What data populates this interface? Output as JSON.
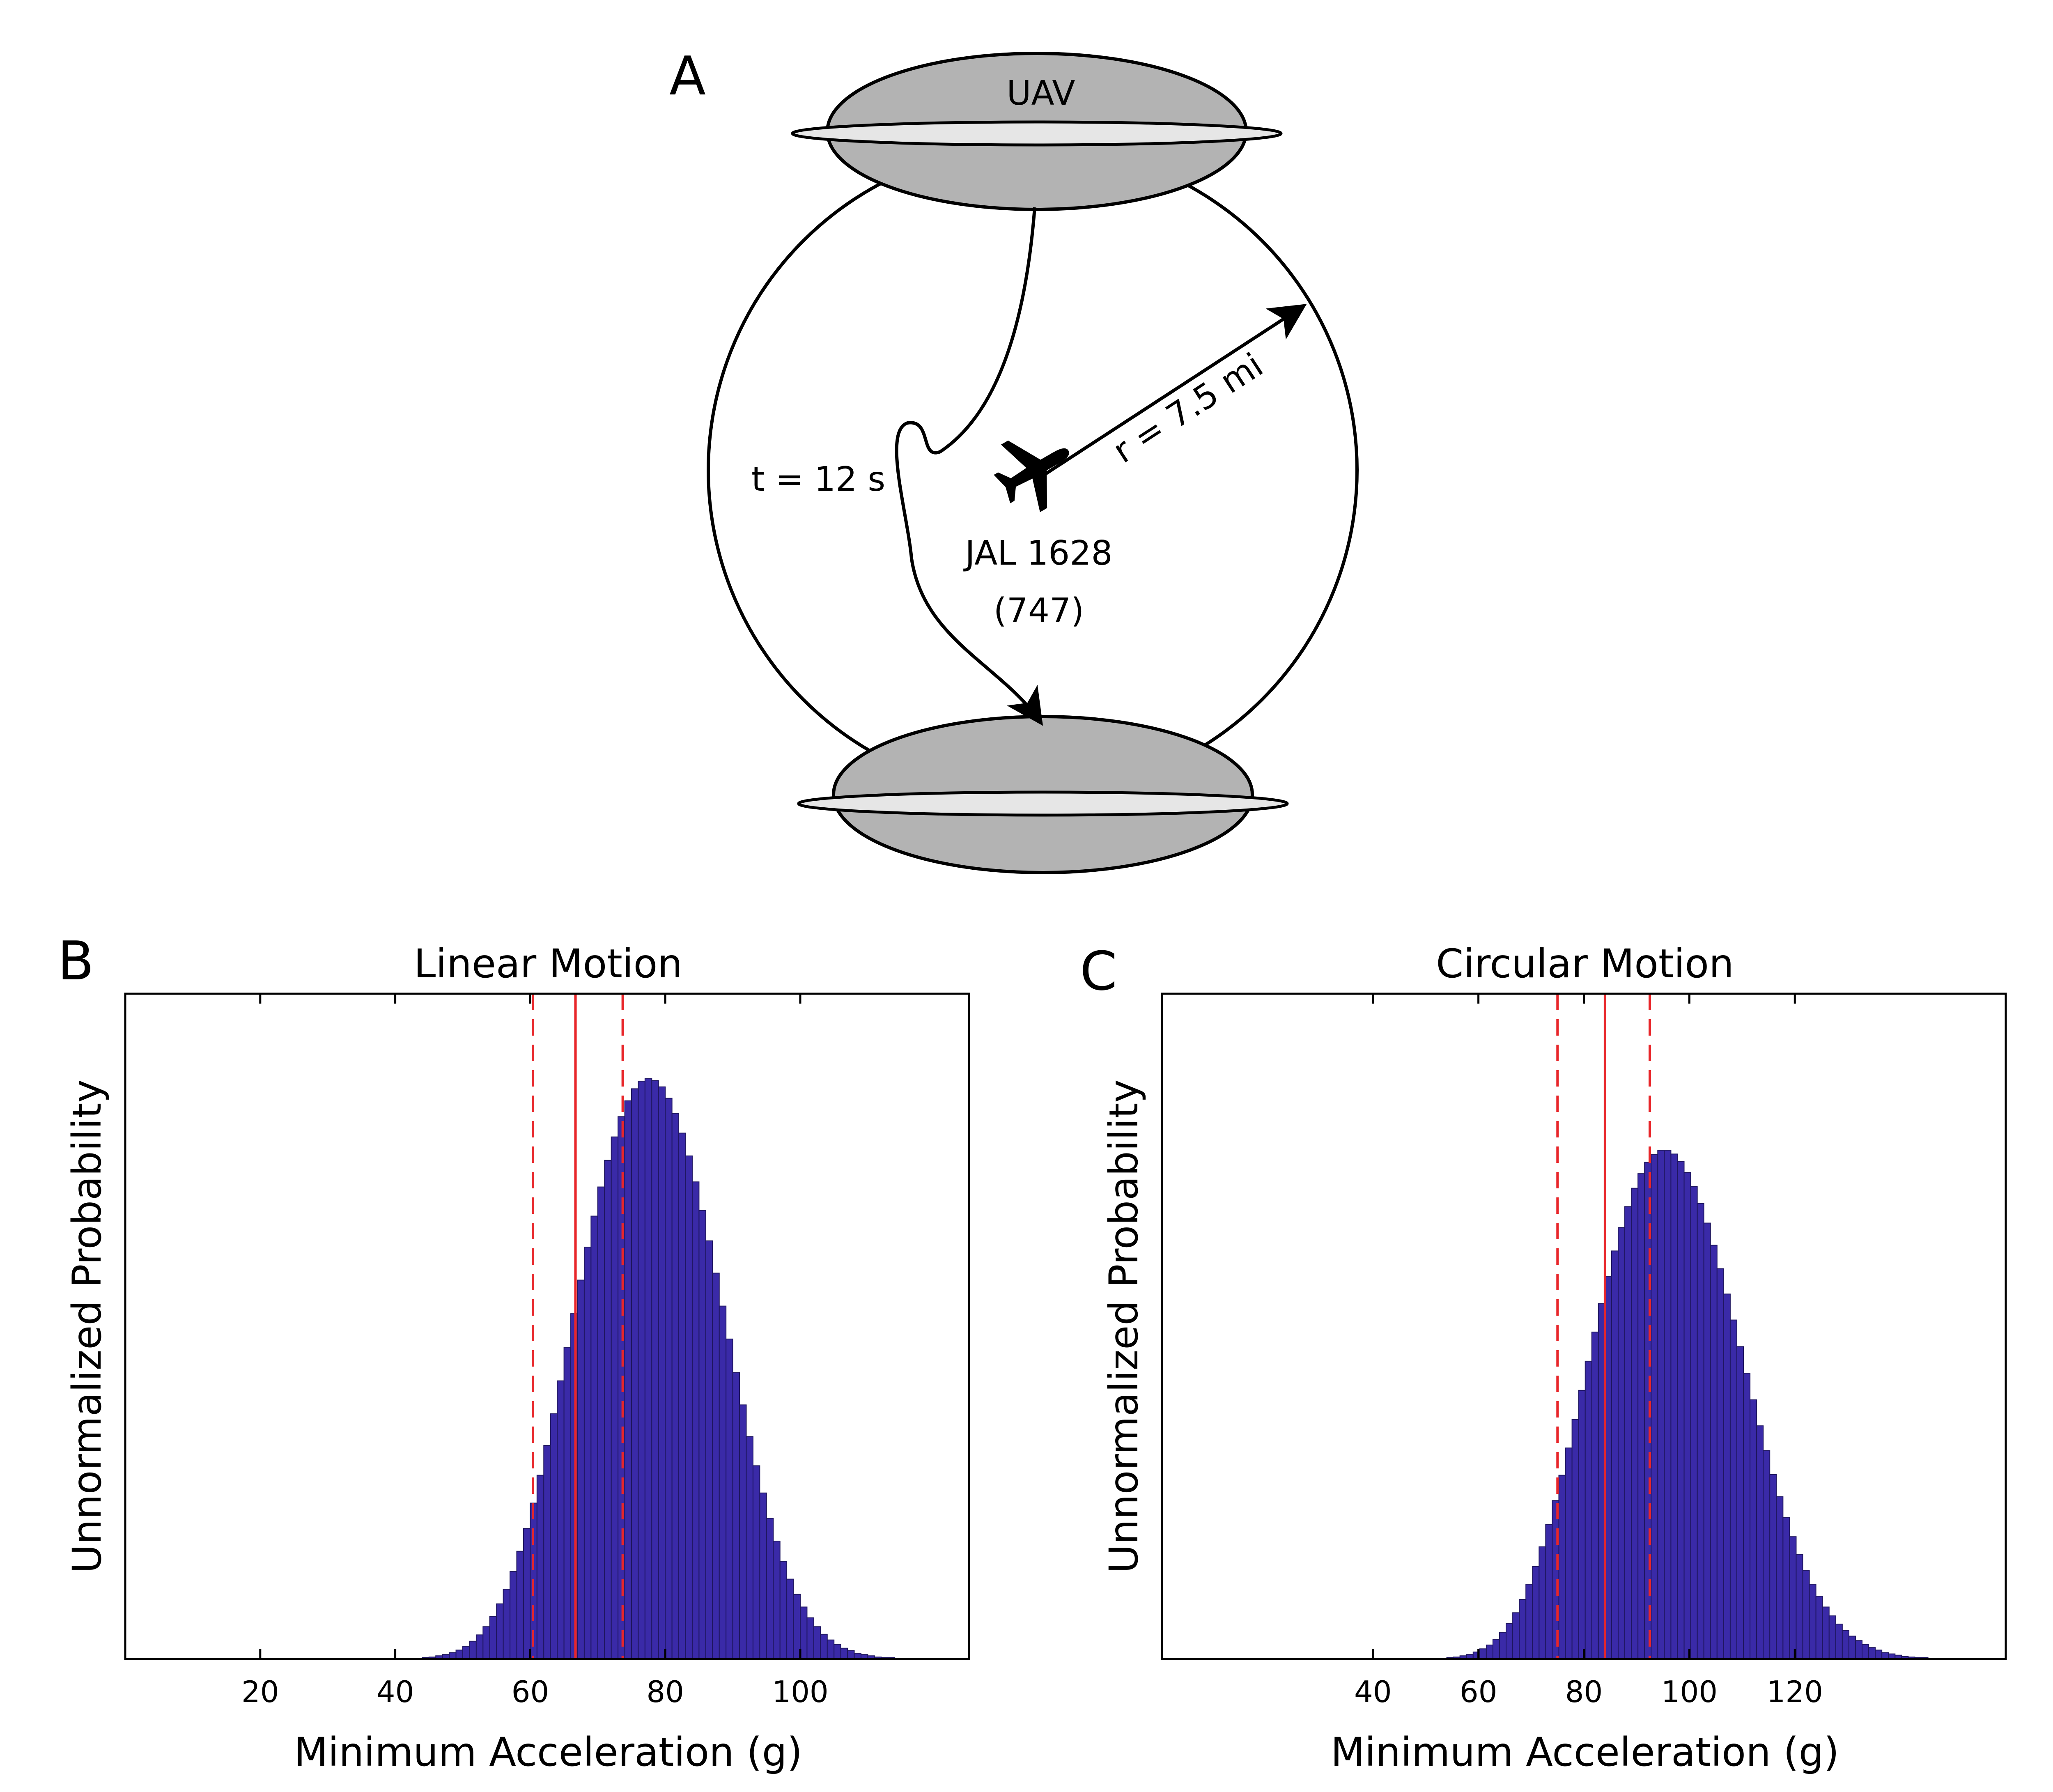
{
  "panel_a": {
    "letter": "A",
    "ufo_label": "UAV",
    "time_label": "t = 12 s",
    "radius_label": "r = 7.5 mi",
    "flight_label": "JAL 1628",
    "aircraft_label": "(747)",
    "icons": {
      "aircraft": "airplane-icon"
    }
  },
  "colors": {
    "bar_fill": "#3a2aa8",
    "bar_edge": "#1f1660",
    "marker_line": "#e8262a",
    "ufo_body": "#b3b3b3",
    "ufo_rim": "#e6e6e6"
  },
  "chart_data": [
    {
      "panel_letter": "B",
      "type": "bar",
      "title": "Linear Motion",
      "xlabel": "Minimum Acceleration (g)",
      "ylabel": "Unnormalized Probability",
      "xlim": [
        0,
        125
      ],
      "ylim": [
        0,
        1.05
      ],
      "xticks": [
        20,
        40,
        60,
        80,
        100
      ],
      "xtick_labels": [
        "20",
        "40",
        "60",
        "80",
        "100"
      ],
      "bin_start": 35,
      "bin_width": 1,
      "values": [
        0.0,
        0.0,
        0.0,
        0.0,
        0.0,
        0.0,
        0.0,
        0.001,
        0.001,
        0.002,
        0.003,
        0.005,
        0.007,
        0.01,
        0.014,
        0.02,
        0.028,
        0.038,
        0.051,
        0.067,
        0.087,
        0.11,
        0.138,
        0.17,
        0.206,
        0.246,
        0.29,
        0.337,
        0.387,
        0.439,
        0.492,
        0.545,
        0.598,
        0.65,
        0.699,
        0.745,
        0.787,
        0.824,
        0.856,
        0.881,
        0.9,
        0.912,
        0.916,
        0.913,
        0.903,
        0.885,
        0.861,
        0.83,
        0.794,
        0.753,
        0.708,
        0.66,
        0.609,
        0.557,
        0.505,
        0.452,
        0.401,
        0.351,
        0.305,
        0.262,
        0.222,
        0.186,
        0.154,
        0.126,
        0.102,
        0.082,
        0.065,
        0.051,
        0.039,
        0.03,
        0.023,
        0.017,
        0.013,
        0.009,
        0.007,
        0.005,
        0.003,
        0.002,
        0.002
      ],
      "mean": 66.7,
      "interval": [
        60.4,
        73.7
      ]
    },
    {
      "panel_letter": "C",
      "type": "bar",
      "title": "Circular Motion",
      "xlabel": "Minimum Acceleration (g)",
      "ylabel": "Unnormalized Probability",
      "xlim": [
        0,
        160
      ],
      "ylim": [
        0,
        1.05
      ],
      "xticks": [
        40,
        60,
        80,
        100,
        120
      ],
      "xtick_labels": [
        "40",
        "60",
        "80",
        "100",
        "120"
      ],
      "bin_start": 44,
      "bin_width": 1.25,
      "values": [
        0.0,
        0.0,
        0.0,
        0.0,
        0.0,
        0.0,
        0.001,
        0.001,
        0.002,
        0.003,
        0.005,
        0.007,
        0.011,
        0.016,
        0.022,
        0.031,
        0.042,
        0.056,
        0.073,
        0.094,
        0.118,
        0.146,
        0.177,
        0.212,
        0.25,
        0.29,
        0.333,
        0.378,
        0.424,
        0.47,
        0.516,
        0.561,
        0.604,
        0.644,
        0.681,
        0.714,
        0.743,
        0.766,
        0.784,
        0.796,
        0.803,
        0.803,
        0.797,
        0.785,
        0.768,
        0.746,
        0.719,
        0.688,
        0.653,
        0.616,
        0.576,
        0.535,
        0.493,
        0.451,
        0.409,
        0.368,
        0.329,
        0.291,
        0.256,
        0.223,
        0.193,
        0.165,
        0.14,
        0.118,
        0.099,
        0.082,
        0.068,
        0.055,
        0.045,
        0.036,
        0.029,
        0.023,
        0.018,
        0.014,
        0.01,
        0.008,
        0.006,
        0.004,
        0.003,
        0.002,
        0.002,
        0.001,
        0.001,
        0.001,
        0.0,
        0.0
      ],
      "mean": 84.0,
      "interval": [
        75.0,
        92.5
      ]
    }
  ]
}
